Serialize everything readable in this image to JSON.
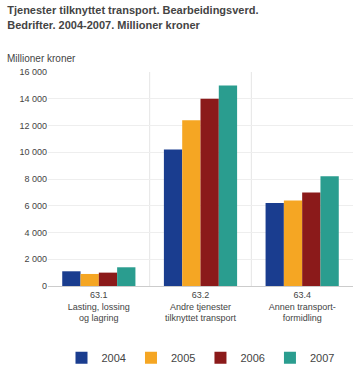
{
  "chart_data": {
    "type": "bar",
    "title": "Tjenester tilknyttet transport. Bearbeidingsverd.",
    "subtitle": "Bedrifter. 2004-2007. Millioner kroner",
    "ylabel": "Millioner kroner",
    "categories": [
      "63.1\nLasting, lossing\nog lagring",
      "63.2\nAndre tjenester\ntilknyttet transport",
      "63.4\nAnnen transport-\nformidling"
    ],
    "series": [
      {
        "name": "2004",
        "color": "#1a3d8f",
        "values": [
          1100,
          10200,
          6200
        ]
      },
      {
        "name": "2005",
        "color": "#f5a623",
        "values": [
          900,
          12400,
          6400
        ]
      },
      {
        "name": "2006",
        "color": "#8b1a1a",
        "values": [
          1000,
          14000,
          7000
        ]
      },
      {
        "name": "2007",
        "color": "#2a9d8f",
        "values": [
          1400,
          15000,
          8200
        ]
      }
    ],
    "ylim": [
      0,
      16000
    ],
    "yticks": [
      0,
      {
        "value": 2000,
        "label": "2 000"
      },
      {
        "value": 4000,
        "label": "4 000"
      },
      {
        "value": 6000,
        "label": "6 000"
      },
      {
        "value": 8000,
        "label": "8 000"
      },
      {
        "value": 10000,
        "label": "10 000"
      },
      {
        "value": 12000,
        "label": "12 000"
      },
      {
        "value": 14000,
        "label": "14 000"
      },
      {
        "value": 16000,
        "label": "16 000"
      }
    ],
    "grid": true,
    "legend": "bottom"
  }
}
